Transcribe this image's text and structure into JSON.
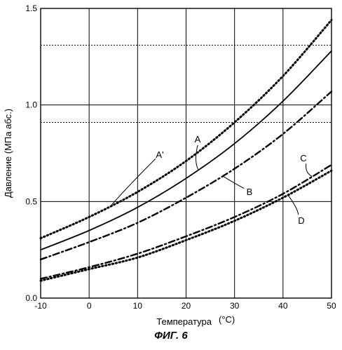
{
  "chart_data": {
    "type": "line",
    "xlabel": "Температура",
    "xlabel_unit": "(°C)",
    "ylabel": "Давление (МПа абс.)",
    "xlim": [
      -10,
      50
    ],
    "ylim": [
      0.0,
      1.5
    ],
    "xticks": [
      -10,
      0,
      10,
      20,
      30,
      40,
      50
    ],
    "xtick_labels": [
      "-10",
      "0",
      "10",
      "20",
      "30",
      "40",
      "50"
    ],
    "yticks": [
      0.0,
      0.5,
      1.0,
      1.5
    ],
    "ytick_labels": [
      "0.0",
      "0.5",
      "1.0",
      "1.5"
    ],
    "grid": true,
    "reference_lines": [
      1.31,
      0.91
    ],
    "series": [
      {
        "name": "A",
        "x": [
          -10,
          0,
          10,
          20,
          30,
          40,
          50
        ],
        "y": [
          0.25,
          0.35,
          0.47,
          0.62,
          0.8,
          1.02,
          1.28
        ],
        "style": "solid"
      },
      {
        "name": "A'",
        "x": [
          -10,
          0,
          10,
          20,
          30,
          40,
          50
        ],
        "y": [
          0.31,
          0.42,
          0.55,
          0.71,
          0.91,
          1.15,
          1.44
        ],
        "style": "dotted"
      },
      {
        "name": "B",
        "x": [
          -10,
          0,
          10,
          20,
          30,
          40,
          50
        ],
        "y": [
          0.2,
          0.29,
          0.39,
          0.52,
          0.67,
          0.85,
          1.07
        ],
        "style": "dashdot"
      },
      {
        "name": "C",
        "x": [
          -10,
          0,
          10,
          20,
          30,
          40,
          50
        ],
        "y": [
          0.1,
          0.16,
          0.23,
          0.32,
          0.42,
          0.54,
          0.69
        ],
        "style": "dashdot"
      },
      {
        "name": "D",
        "x": [
          -10,
          0,
          10,
          20,
          30,
          40,
          50
        ],
        "y": [
          0.09,
          0.15,
          0.21,
          0.3,
          0.4,
          0.52,
          0.66
        ],
        "style": "dotted"
      }
    ]
  },
  "figure_caption": "ФИГ. 6"
}
